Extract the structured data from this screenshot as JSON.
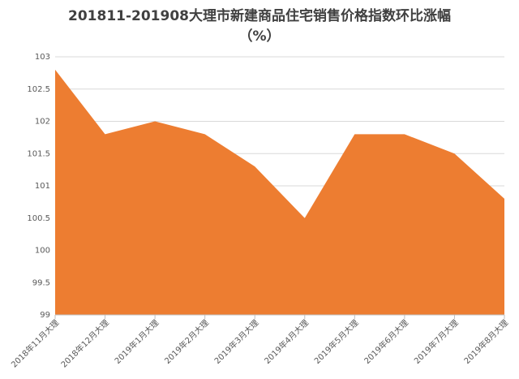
{
  "chart_data": {
    "type": "area",
    "title": "201811-201908大理市新建商品住宅销售价格指数环比涨幅",
    "subtitle": "（%）",
    "categories": [
      "2018年11月大理",
      "2018年12月大理",
      "2019年1月大理",
      "2019年2月大理",
      "2019年3月大理",
      "2019年4月大理",
      "2019年5月大理",
      "2019年6月大理",
      "2019年7月大理",
      "2019年8月大理"
    ],
    "values": [
      102.8,
      101.8,
      102.0,
      101.8,
      101.3,
      100.5,
      101.8,
      101.8,
      101.5,
      100.8
    ],
    "color": "#ed7d31",
    "ylim": [
      99,
      103
    ],
    "yticks": [
      99,
      99.5,
      100,
      100.5,
      101,
      101.5,
      102,
      102.5,
      103
    ],
    "grid": true
  }
}
